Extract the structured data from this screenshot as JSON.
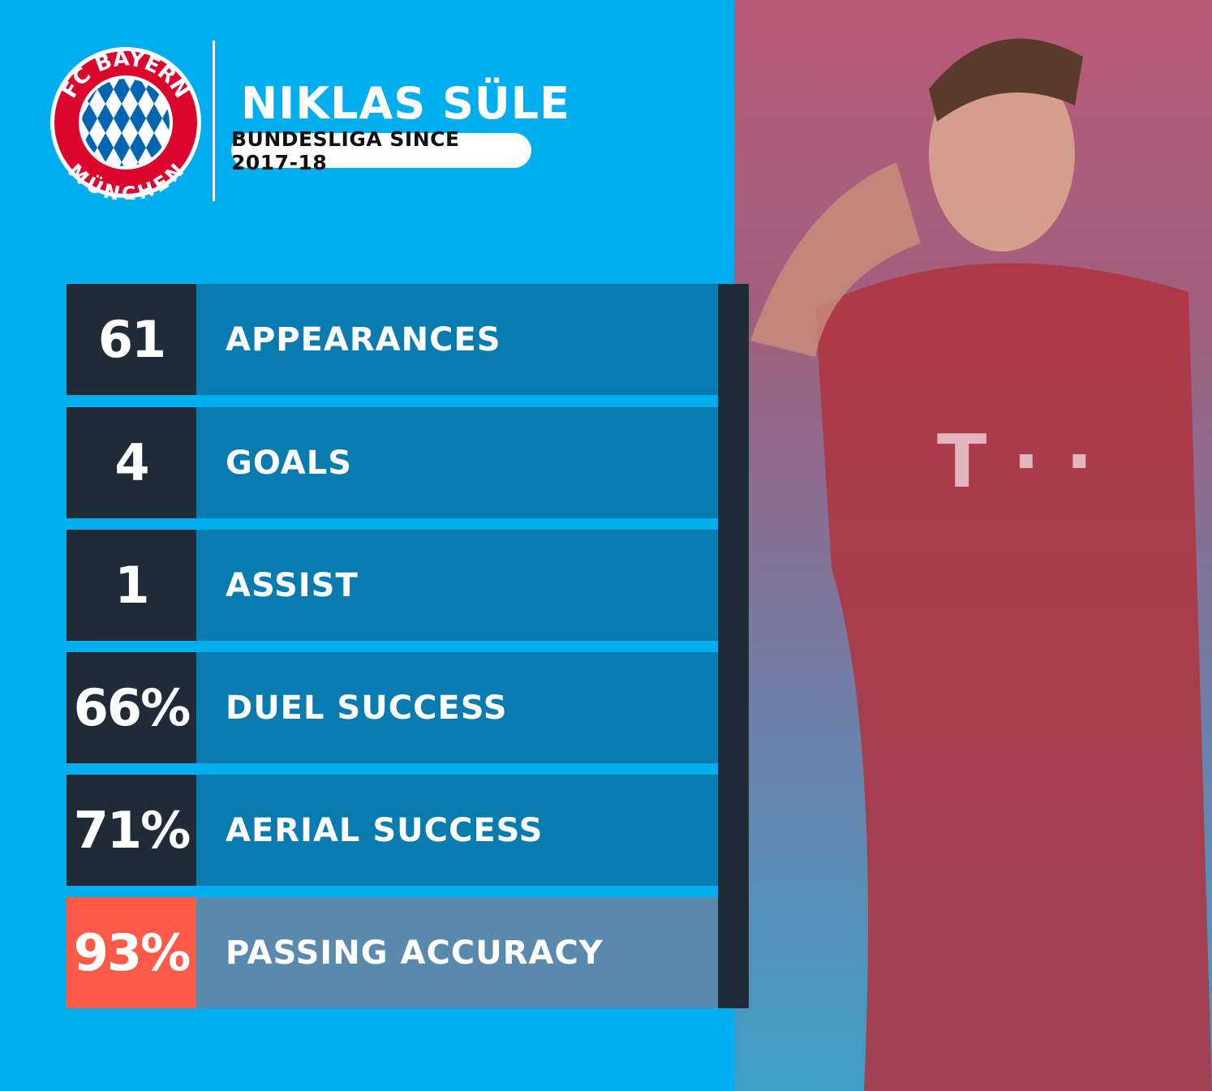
{
  "header": {
    "player_name": "NIKLAS SÜLE",
    "subtitle": "BUNDESLIGA SINCE 2017-18",
    "crest_text": [
      "FC BAYERN",
      "MÜNCHEN"
    ]
  },
  "stats": [
    {
      "value": "61",
      "label": "APPEARANCES",
      "highlight": false
    },
    {
      "value": "4",
      "label": "GOALS",
      "highlight": false
    },
    {
      "value": "1",
      "label": "ASSIST",
      "highlight": false
    },
    {
      "value": "66%",
      "label": "DUEL SUCCESS",
      "highlight": false
    },
    {
      "value": "71%",
      "label": "AERIAL SUCCESS",
      "highlight": false
    },
    {
      "value": "93%",
      "label": "PASSING ACCURACY",
      "highlight": true
    }
  ],
  "colors": {
    "background": "#00aeef",
    "dark": "#1f2b36",
    "row": "#0a7bae",
    "highlight_value": "#ff5a48",
    "highlight_row": "#5a89ae",
    "crest_red": "#dc052d",
    "crest_blue": "#0066b2"
  }
}
